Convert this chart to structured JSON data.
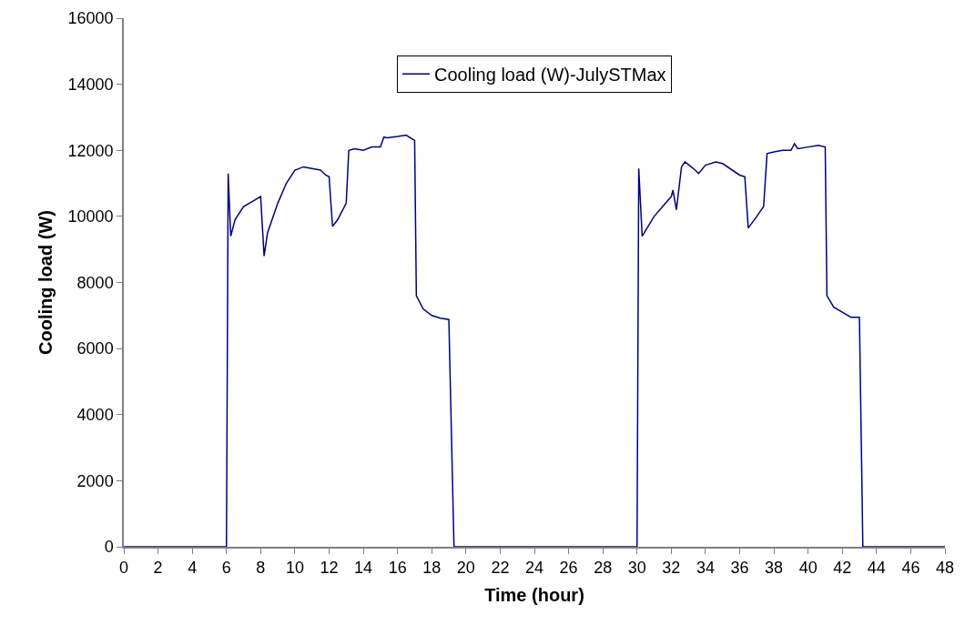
{
  "chart_data": {
    "type": "line",
    "xlabel": "Time (hour)",
    "ylabel": "Cooling load (W)",
    "xlim": [
      0,
      48
    ],
    "xticks": [
      0,
      2,
      4,
      6,
      8,
      10,
      12,
      14,
      16,
      18,
      20,
      22,
      24,
      26,
      28,
      30,
      32,
      34,
      36,
      38,
      40,
      42,
      44,
      46,
      48
    ],
    "ylim": [
      0,
      16000
    ],
    "yticks": [
      0,
      2000,
      4000,
      6000,
      8000,
      10000,
      12000,
      14000,
      16000
    ],
    "grid": false,
    "legend": "top",
    "marker": "none",
    "line_style": "solid",
    "series": [
      {
        "name": "Cooling load (W)-JulySTMax",
        "color": "#000080",
        "x": [
          0,
          6,
          6.1,
          6.25,
          6.5,
          7,
          7.5,
          8,
          8.2,
          8.4,
          9,
          9.5,
          10,
          10.5,
          11,
          11.5,
          11.8,
          12,
          12.2,
          12.5,
          13,
          13.15,
          13.5,
          14,
          14.5,
          15,
          15.2,
          15.4,
          16,
          16.5,
          17,
          17.1,
          17.5,
          18,
          18.5,
          19,
          19.3,
          30,
          30.1,
          30.3,
          31,
          32,
          32.1,
          32.3,
          32.6,
          32.8,
          33.4,
          33.6,
          34,
          34.6,
          35,
          36,
          36.3,
          36.5,
          37,
          37.4,
          37.6,
          38,
          38.5,
          39,
          39.2,
          39.4,
          40,
          40.6,
          41,
          41.1,
          41.5,
          42,
          42.5,
          43,
          43.2,
          48
        ],
        "values": [
          0,
          0,
          11300,
          9400,
          9900,
          10300,
          10450,
          10600,
          8800,
          9500,
          10400,
          11000,
          11400,
          11500,
          11450,
          11400,
          11250,
          11200,
          9700,
          9900,
          10400,
          12000,
          12050,
          12000,
          12100,
          12100,
          12400,
          12380,
          12420,
          12460,
          12300,
          7600,
          7200,
          7000,
          6920,
          6880,
          0,
          0,
          11450,
          9400,
          10000,
          10600,
          10800,
          10200,
          11500,
          11650,
          11400,
          11300,
          11550,
          11650,
          11600,
          11250,
          11200,
          9650,
          10000,
          10300,
          11900,
          11950,
          12000,
          12000,
          12200,
          12050,
          12100,
          12150,
          12100,
          7600,
          7250,
          7100,
          6950,
          6950,
          0,
          0
        ]
      }
    ]
  }
}
